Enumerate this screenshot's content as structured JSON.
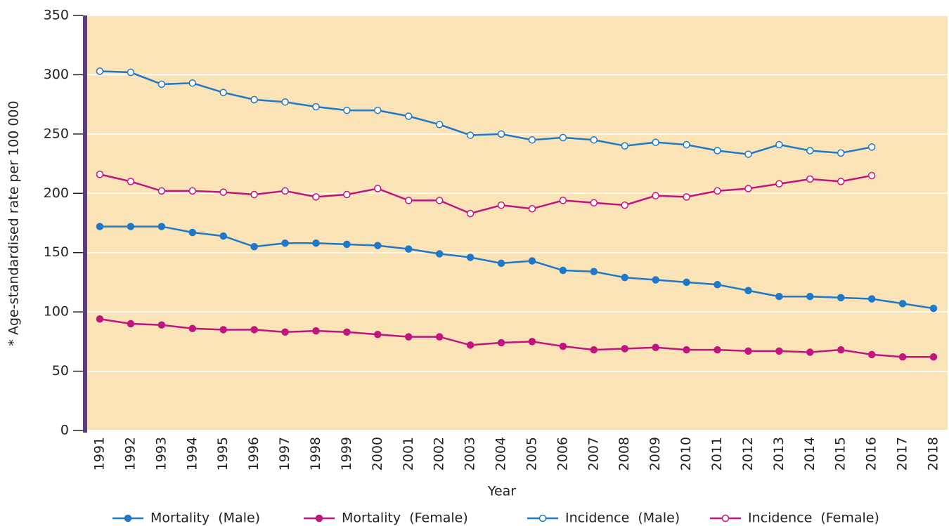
{
  "chart_data": {
    "type": "line",
    "xlabel": "Year",
    "ylabel": "* Age-standardised rate per 100 000",
    "categories": [
      "1991",
      "1992",
      "1993",
      "1994",
      "1995",
      "1996",
      "1997",
      "1998",
      "1999",
      "2000",
      "2001",
      "2002",
      "2003",
      "2004",
      "2005",
      "2006",
      "2007",
      "2008",
      "2009",
      "2010",
      "2011",
      "2012",
      "2013",
      "2014",
      "2015",
      "2016",
      "2017",
      "2018"
    ],
    "series": [
      {
        "name": "Mortality  (Male)",
        "color": "#1f78c8",
        "marker": "filled",
        "values": [
          172,
          172,
          172,
          167,
          164,
          155,
          158,
          158,
          157,
          156,
          153,
          149,
          146,
          141,
          143,
          135,
          134,
          129,
          127,
          125,
          123,
          118,
          113,
          113,
          112,
          111,
          107,
          103
        ]
      },
      {
        "name": "Mortality  (Female)",
        "color": "#c0157f",
        "marker": "filled",
        "values": [
          94,
          90,
          89,
          86,
          85,
          85,
          83,
          84,
          83,
          81,
          79,
          79,
          72,
          74,
          75,
          71,
          68,
          69,
          70,
          68,
          68,
          67,
          67,
          66,
          68,
          64,
          62,
          62
        ]
      },
      {
        "name": "Incidence  (Male)",
        "color": "#1f78c8",
        "marker": "open",
        "values": [
          303,
          302,
          292,
          293,
          285,
          279,
          277,
          273,
          270,
          270,
          265,
          258,
          249,
          250,
          245,
          247,
          245,
          240,
          243,
          241,
          236,
          233,
          241,
          236,
          234,
          239,
          null,
          null
        ]
      },
      {
        "name": "Incidence  (Female)",
        "color": "#c0157f",
        "marker": "open",
        "values": [
          216,
          210,
          202,
          202,
          201,
          199,
          202,
          197,
          199,
          204,
          194,
          194,
          183,
          190,
          187,
          194,
          192,
          190,
          198,
          197,
          202,
          204,
          208,
          212,
          210,
          215,
          null,
          null
        ]
      }
    ],
    "ylim": [
      0,
      350
    ],
    "yticks": [
      0,
      50,
      100,
      150,
      200,
      250,
      300,
      350
    ],
    "grid": true,
    "plot_background": "#fbe3b8",
    "axis_color": "#5b3a7e",
    "legend": "bottom"
  }
}
